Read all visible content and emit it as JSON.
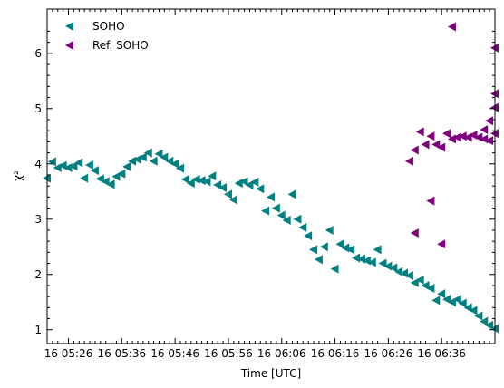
{
  "chart_data": {
    "type": "scatter",
    "marker": "left-pointing triangle",
    "xlabel": "Time [UTC]",
    "ylabel": "χ²",
    "xlim": [
      "05:22",
      "06:46"
    ],
    "ylim": [
      0.75,
      6.8
    ],
    "x_ticks": [
      "16 05:26",
      "16 05:36",
      "16 05:46",
      "16 05:56",
      "16 06:06",
      "16 06:16",
      "16 06:26",
      "16 06:36"
    ],
    "y_ticks": [
      1,
      2,
      3,
      4,
      5,
      6
    ],
    "legend_position": "top-left",
    "grid": false,
    "series": [
      {
        "name": "SOHO",
        "color": "#008080",
        "points": [
          [
            "05:22",
            3.74
          ],
          [
            "05:23",
            4.04
          ],
          [
            "05:24",
            3.93
          ],
          [
            "05:25",
            3.97
          ],
          [
            "05:26",
            3.93
          ],
          [
            "05:27",
            3.96
          ],
          [
            "05:28",
            4.02
          ],
          [
            "05:29",
            3.74
          ],
          [
            "05:30",
            3.98
          ],
          [
            "05:31",
            3.88
          ],
          [
            "05:32",
            3.73
          ],
          [
            "05:33",
            3.68
          ],
          [
            "05:34",
            3.63
          ],
          [
            "05:35",
            3.77
          ],
          [
            "05:36",
            3.82
          ],
          [
            "05:37",
            3.95
          ],
          [
            "05:38",
            4.05
          ],
          [
            "05:39",
            4.08
          ],
          [
            "05:40",
            4.12
          ],
          [
            "05:41",
            4.2
          ],
          [
            "05:42",
            4.05
          ],
          [
            "05:43",
            4.18
          ],
          [
            "05:44",
            4.12
          ],
          [
            "05:45",
            4.05
          ],
          [
            "05:46",
            4.0
          ],
          [
            "05:47",
            3.92
          ],
          [
            "05:48",
            3.72
          ],
          [
            "05:49",
            3.65
          ],
          [
            "05:50",
            3.72
          ],
          [
            "05:51",
            3.7
          ],
          [
            "05:52",
            3.68
          ],
          [
            "05:53",
            3.78
          ],
          [
            "05:54",
            3.62
          ],
          [
            "05:55",
            3.57
          ],
          [
            "05:56",
            3.45
          ],
          [
            "05:57",
            3.35
          ],
          [
            "05:58",
            3.65
          ],
          [
            "05:59",
            3.68
          ],
          [
            "06:00",
            3.62
          ],
          [
            "06:01",
            3.67
          ],
          [
            "06:02",
            3.55
          ],
          [
            "06:03",
            3.15
          ],
          [
            "06:04",
            3.4
          ],
          [
            "06:05",
            3.2
          ],
          [
            "06:06",
            3.07
          ],
          [
            "06:07",
            2.98
          ],
          [
            "06:08",
            3.45
          ],
          [
            "06:09",
            3.0
          ],
          [
            "06:10",
            2.85
          ],
          [
            "06:11",
            2.7
          ],
          [
            "06:12",
            2.45
          ],
          [
            "06:13",
            2.27
          ],
          [
            "06:14",
            2.5
          ],
          [
            "06:15",
            2.8
          ],
          [
            "06:16",
            2.1
          ],
          [
            "06:17",
            2.55
          ],
          [
            "06:18",
            2.48
          ],
          [
            "06:19",
            2.45
          ],
          [
            "06:20",
            2.3
          ],
          [
            "06:21",
            2.28
          ],
          [
            "06:22",
            2.25
          ],
          [
            "06:23",
            2.22
          ],
          [
            "06:24",
            2.45
          ],
          [
            "06:25",
            2.2
          ],
          [
            "06:26",
            2.15
          ],
          [
            "06:27",
            2.12
          ],
          [
            "06:28",
            2.05
          ],
          [
            "06:29",
            2.02
          ],
          [
            "06:30",
            1.98
          ],
          [
            "06:31",
            1.85
          ],
          [
            "06:32",
            1.9
          ],
          [
            "06:33",
            1.8
          ],
          [
            "06:34",
            1.75
          ],
          [
            "06:35",
            1.53
          ],
          [
            "06:36",
            1.65
          ],
          [
            "06:37",
            1.55
          ],
          [
            "06:38",
            1.5
          ],
          [
            "06:39",
            1.55
          ],
          [
            "06:40",
            1.48
          ],
          [
            "06:41",
            1.4
          ],
          [
            "06:42",
            1.35
          ],
          [
            "06:43",
            1.25
          ],
          [
            "06:44",
            1.15
          ],
          [
            "06:45",
            1.08
          ],
          [
            "06:46",
            1.02
          ]
        ]
      },
      {
        "name": "Ref. SOHO",
        "color": "#800080",
        "points": [
          [
            "06:30",
            4.05
          ],
          [
            "06:31",
            4.25
          ],
          [
            "06:31",
            2.75
          ],
          [
            "06:32",
            4.58
          ],
          [
            "06:33",
            4.35
          ],
          [
            "06:34",
            4.5
          ],
          [
            "06:34",
            3.33
          ],
          [
            "06:35",
            4.35
          ],
          [
            "06:36",
            4.3
          ],
          [
            "06:36",
            2.55
          ],
          [
            "06:37",
            4.55
          ],
          [
            "06:38",
            4.45
          ],
          [
            "06:38",
            6.48
          ],
          [
            "06:39",
            4.48
          ],
          [
            "06:40",
            4.5
          ],
          [
            "06:41",
            4.48
          ],
          [
            "06:42",
            4.52
          ],
          [
            "06:43",
            4.48
          ],
          [
            "06:44",
            4.45
          ],
          [
            "06:44",
            4.62
          ],
          [
            "06:45",
            4.78
          ],
          [
            "06:45",
            4.42
          ],
          [
            "06:46",
            6.1
          ],
          [
            "06:46",
            5.27
          ],
          [
            "06:46",
            5.02
          ],
          [
            "06:46",
            4.55
          ]
        ]
      }
    ]
  }
}
